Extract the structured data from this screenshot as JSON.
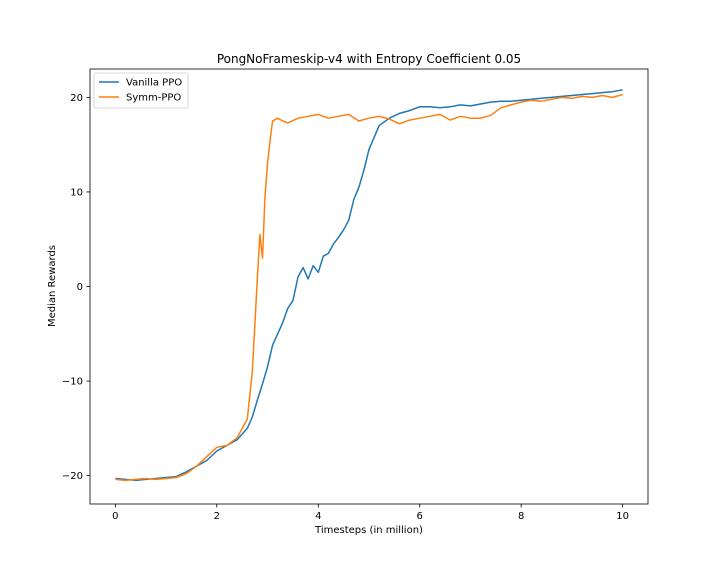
{
  "chart_data": {
    "type": "line",
    "title": "PongNoFrameskip-v4 with Entropy Coefficient 0.05",
    "xlabel": "Timesteps (in million)",
    "ylabel": "Median Rewards",
    "xlim": [
      -0.5,
      10.5
    ],
    "ylim": [
      -23,
      23
    ],
    "xticks": [
      0,
      2,
      4,
      6,
      8,
      10
    ],
    "yticks": [
      -20,
      -10,
      0,
      10,
      20
    ],
    "ytick_labels": [
      "−20",
      "−10",
      "0",
      "10",
      "20"
    ],
    "grid": false,
    "legend_position": "upper-left",
    "series": [
      {
        "name": "Vanilla PPO",
        "color": "#1f77b4",
        "x": [
          0,
          0.2,
          0.4,
          0.6,
          0.8,
          1.0,
          1.2,
          1.4,
          1.6,
          1.8,
          2.0,
          2.2,
          2.4,
          2.6,
          2.7,
          2.8,
          2.9,
          3.0,
          3.1,
          3.2,
          3.3,
          3.4,
          3.5,
          3.6,
          3.7,
          3.8,
          3.9,
          4.0,
          4.1,
          4.2,
          4.3,
          4.4,
          4.5,
          4.6,
          4.7,
          4.8,
          4.9,
          5.0,
          5.2,
          5.4,
          5.6,
          5.8,
          6.0,
          6.2,
          6.4,
          6.6,
          6.8,
          7.0,
          7.2,
          7.4,
          7.6,
          7.8,
          8.0,
          8.2,
          8.4,
          8.6,
          8.8,
          9.0,
          9.2,
          9.4,
          9.6,
          9.8,
          10.0
        ],
        "values": [
          -20.3,
          -20.4,
          -20.5,
          -20.4,
          -20.3,
          -20.2,
          -20.1,
          -19.6,
          -19.0,
          -18.4,
          -17.4,
          -16.8,
          -16.2,
          -15.0,
          -13.8,
          -12.0,
          -10.3,
          -8.5,
          -6.2,
          -5.0,
          -3.8,
          -2.3,
          -1.5,
          1.0,
          2.0,
          0.8,
          2.2,
          1.5,
          3.2,
          3.5,
          4.5,
          5.2,
          6.0,
          7.0,
          9.2,
          10.5,
          12.3,
          14.5,
          17.0,
          17.8,
          18.3,
          18.6,
          19.0,
          19.0,
          18.9,
          19.0,
          19.2,
          19.1,
          19.3,
          19.5,
          19.6,
          19.6,
          19.7,
          19.8,
          19.9,
          20.0,
          20.1,
          20.2,
          20.3,
          20.4,
          20.5,
          20.6,
          20.8
        ]
      },
      {
        "name": "Symm-PPO",
        "color": "#ff7f0e",
        "x": [
          0,
          0.2,
          0.4,
          0.6,
          0.8,
          1.0,
          1.2,
          1.4,
          1.6,
          1.8,
          2.0,
          2.2,
          2.4,
          2.6,
          2.7,
          2.75,
          2.8,
          2.85,
          2.9,
          2.95,
          3.0,
          3.05,
          3.1,
          3.2,
          3.3,
          3.4,
          3.6,
          3.8,
          4.0,
          4.2,
          4.4,
          4.6,
          4.8,
          5.0,
          5.2,
          5.4,
          5.6,
          5.8,
          6.0,
          6.2,
          6.4,
          6.6,
          6.8,
          7.0,
          7.2,
          7.4,
          7.6,
          7.8,
          8.0,
          8.2,
          8.4,
          8.6,
          8.8,
          9.0,
          9.2,
          9.4,
          9.6,
          9.8,
          10.0
        ],
        "values": [
          -20.4,
          -20.5,
          -20.4,
          -20.3,
          -20.4,
          -20.3,
          -20.2,
          -19.8,
          -19.0,
          -18.0,
          -17.0,
          -16.8,
          -16.0,
          -14.0,
          -9.0,
          -4.0,
          1.0,
          5.5,
          3.0,
          9.5,
          13.0,
          15.5,
          17.5,
          17.8,
          17.5,
          17.3,
          17.8,
          18.0,
          18.2,
          17.8,
          18.0,
          18.2,
          17.5,
          17.8,
          18.0,
          17.7,
          17.2,
          17.6,
          17.8,
          18.0,
          18.2,
          17.6,
          18.0,
          17.8,
          17.8,
          18.1,
          18.9,
          19.2,
          19.5,
          19.7,
          19.6,
          19.8,
          20.0,
          19.9,
          20.1,
          20.0,
          20.2,
          20.0,
          20.3
        ]
      }
    ]
  }
}
